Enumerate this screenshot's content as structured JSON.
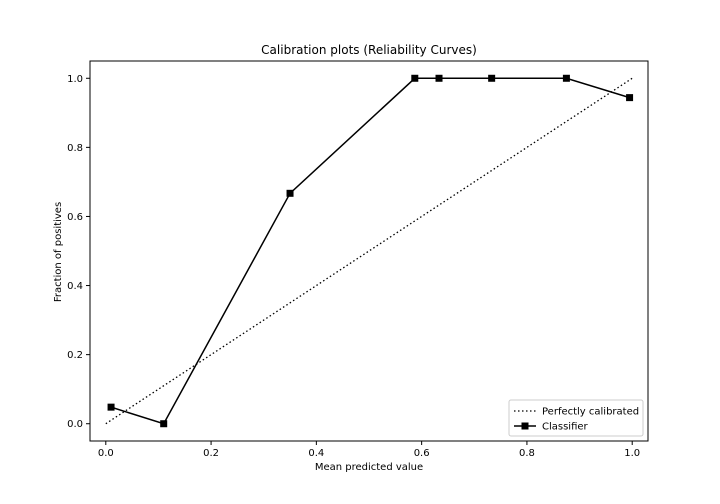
{
  "chart_data": {
    "type": "line",
    "title": "Calibration plots (Reliability Curves)",
    "xlabel": "Mean predicted value",
    "ylabel": "Fraction of positives",
    "xlim": [
      -0.03,
      1.03
    ],
    "ylim": [
      -0.05,
      1.05
    ],
    "xticks": [
      0.0,
      0.2,
      0.4,
      0.6,
      0.8,
      1.0
    ],
    "xtick_labels": [
      "0.0",
      "0.2",
      "0.4",
      "0.6",
      "0.8",
      "1.0"
    ],
    "yticks": [
      0.0,
      0.2,
      0.4,
      0.6,
      0.8,
      1.0
    ],
    "ytick_labels": [
      "0.0",
      "0.2",
      "0.4",
      "0.6",
      "0.8",
      "1.0"
    ],
    "grid": false,
    "legend_position": "lower right",
    "series": [
      {
        "name": "Perfectly calibrated",
        "style": "dotted",
        "marker": "none",
        "color": "#000000",
        "x": [
          0,
          1
        ],
        "y": [
          0,
          1
        ]
      },
      {
        "name": "Classifier",
        "style": "solid",
        "marker": "square",
        "color": "#000000",
        "x": [
          0.01,
          0.11,
          0.35,
          0.587,
          0.633,
          0.733,
          0.875,
          0.995
        ],
        "y": [
          0.048,
          0.0,
          0.667,
          1.0,
          1.0,
          1.0,
          1.0,
          0.944
        ]
      }
    ]
  }
}
